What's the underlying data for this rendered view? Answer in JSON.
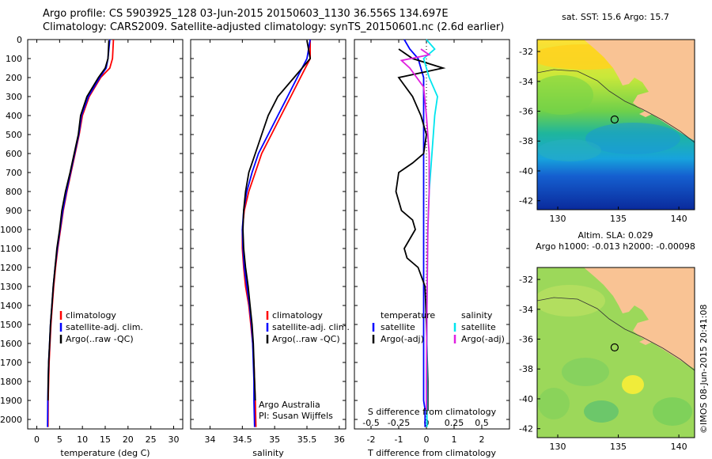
{
  "header": {
    "line1": "Argo profile: CS 5903925_128 03-Jun-2015 20150603_1130 36.556S 134.697E",
    "line2": "Climatology: CARS2009. Satellite-adjusted climatology: synTS_20150601.nc (2.6d earlier)"
  },
  "copyright": "©IMOS 08-Jun-2015 20:41:08",
  "colors": {
    "climatology": "#ff0000",
    "satellite": "#0000ff",
    "argo": "#000000",
    "sal_satellite": "#00e5ee",
    "sal_argo": "#e020e0",
    "land": "#f9c394"
  },
  "chart_data": [
    {
      "type": "line",
      "id": "temperature",
      "xlabel": "temperature (deg C)",
      "ylabel": "",
      "xlim": [
        -2,
        32
      ],
      "ylim": [
        2050,
        0
      ],
      "xticks": [
        0,
        5,
        10,
        15,
        20,
        25,
        30
      ],
      "yticks": [
        0,
        100,
        200,
        300,
        400,
        500,
        600,
        700,
        800,
        900,
        1000,
        1100,
        1200,
        1300,
        1400,
        1500,
        1600,
        1700,
        1800,
        1900,
        2000
      ],
      "legend": [
        "climatology",
        "satellite-adj. clim.",
        "Argo(..raw -QC)"
      ],
      "series": [
        {
          "name": "climatology",
          "x": [
            16.8,
            16.6,
            16.0,
            14.0,
            11.5,
            10.0,
            9.3,
            8.4,
            7.5,
            6.6,
            5.8,
            5.2,
            4.6,
            4.1,
            3.7,
            3.4,
            3.1,
            2.9,
            2.7,
            2.6,
            2.5,
            2.45
          ],
          "depth": [
            0,
            100,
            150,
            200,
            300,
            400,
            500,
            600,
            700,
            800,
            900,
            1000,
            1100,
            1200,
            1300,
            1400,
            1500,
            1600,
            1700,
            1800,
            1900,
            2040
          ]
        },
        {
          "name": "satellite-adj. clim.",
          "x": [
            16.0,
            15.6,
            15.2,
            13.8,
            11.3,
            9.8,
            9.2,
            8.3,
            7.4,
            6.5,
            5.7,
            5.1,
            4.5,
            4.0,
            3.6,
            3.3,
            3.0,
            2.8,
            2.6,
            2.5,
            2.4,
            2.35
          ],
          "depth": [
            0,
            100,
            150,
            200,
            300,
            400,
            500,
            600,
            700,
            800,
            900,
            1000,
            1100,
            1200,
            1300,
            1400,
            1500,
            1600,
            1700,
            1800,
            1900,
            2040
          ]
        },
        {
          "name": "Argo(..raw -QC)",
          "x": [
            15.8,
            15.6,
            15.0,
            13.5,
            11.0,
            9.6,
            9.1,
            8.2,
            7.3,
            6.3,
            5.5,
            5.0,
            4.4,
            4.0,
            3.6,
            3.3,
            3.0,
            2.8,
            2.6,
            2.5,
            2.45
          ],
          "depth": [
            5,
            100,
            150,
            200,
            300,
            400,
            500,
            600,
            700,
            800,
            900,
            1000,
            1100,
            1200,
            1300,
            1400,
            1500,
            1600,
            1700,
            1800,
            1900
          ]
        }
      ]
    },
    {
      "type": "line",
      "id": "salinity",
      "xlabel": "salinity",
      "ylabel": "",
      "xlim": [
        33.7,
        36.1
      ],
      "ylim": [
        2050,
        0
      ],
      "xticks": [
        34,
        34.5,
        35,
        35.5,
        36
      ],
      "xtick_labels": [
        "34",
        "34.5",
        "35",
        "35.5",
        "36"
      ],
      "legend": [
        "climatology",
        "satellite-adj. clim.",
        "Argo(..raw -QC)"
      ],
      "note_lines": [
        "Argo Australia",
        "PI: Susan Wijffels"
      ],
      "series": [
        {
          "name": "climatology",
          "x": [
            35.55,
            35.55,
            35.4,
            35.25,
            35.1,
            34.95,
            34.8,
            34.7,
            34.6,
            34.53,
            34.5,
            34.5,
            34.52,
            34.55,
            34.6,
            34.63,
            34.66,
            34.68,
            34.69,
            34.7,
            34.71
          ],
          "depth": [
            0,
            100,
            200,
            300,
            400,
            500,
            600,
            700,
            800,
            900,
            1000,
            1100,
            1200,
            1300,
            1400,
            1500,
            1600,
            1700,
            1800,
            1900,
            2040
          ]
        },
        {
          "name": "satellite-adj. clim.",
          "x": [
            35.55,
            35.5,
            35.35,
            35.2,
            35.05,
            34.9,
            34.75,
            34.65,
            34.57,
            34.52,
            34.5,
            34.51,
            34.53,
            34.57,
            34.61,
            34.64,
            34.66,
            34.67,
            34.68,
            34.68,
            34.69
          ],
          "depth": [
            0,
            100,
            200,
            300,
            400,
            500,
            600,
            700,
            800,
            900,
            1000,
            1100,
            1200,
            1300,
            1400,
            1500,
            1600,
            1700,
            1800,
            1900,
            2040
          ]
        },
        {
          "name": "Argo(..raw -QC)",
          "x": [
            35.5,
            35.55,
            35.3,
            35.05,
            34.9,
            34.8,
            34.7,
            34.6,
            34.55,
            34.52,
            34.51,
            34.52,
            34.55,
            34.59,
            34.62,
            34.65,
            34.67,
            34.68,
            34.69,
            34.7
          ],
          "depth": [
            5,
            100,
            200,
            300,
            400,
            500,
            600,
            700,
            800,
            900,
            1000,
            1100,
            1200,
            1300,
            1400,
            1500,
            1600,
            1700,
            1800,
            1900
          ]
        }
      ]
    },
    {
      "type": "line",
      "id": "differences",
      "xlabel": "T difference from climatology",
      "xlabel_top": "S difference from climatology",
      "xlim": [
        -2.6,
        3.0
      ],
      "ylim": [
        2050,
        0
      ],
      "xticks": [
        -2,
        -1,
        0,
        1,
        2
      ],
      "top_ticks": [
        "-0.5",
        "-0.25",
        "0",
        "0.25",
        "0.5"
      ],
      "legend_temperature": [
        "temperature",
        "satellite",
        "Argo(-adj)"
      ],
      "legend_salinity": [
        "salinity",
        "satellite",
        "Argo(-adj)"
      ],
      "series": [
        {
          "name": "satellite",
          "x": [
            -0.8,
            -0.6,
            -0.3,
            -0.1,
            -0.1,
            -0.1,
            -0.1,
            -0.1,
            -0.1,
            -0.1,
            -0.1,
            -0.1,
            -0.1,
            -0.05,
            -0.05,
            -0.05
          ],
          "depth": [
            0,
            50,
            100,
            200,
            400,
            600,
            800,
            1000,
            1200,
            1400,
            1600,
            1800,
            1900,
            1950,
            2000,
            2040
          ]
        },
        {
          "name": "Argo(-adj)",
          "x": [
            -1.0,
            -0.5,
            0.6,
            -1.0,
            -0.5,
            -0.2,
            0.0,
            -0.1,
            -0.5,
            -1.0,
            -1.1,
            -0.9,
            -0.5,
            -0.4,
            -0.6,
            -0.8,
            -0.7,
            -0.3,
            -0.05,
            0.0,
            0.05,
            0.05
          ],
          "depth": [
            50,
            100,
            150,
            200,
            300,
            400,
            500,
            600,
            650,
            700,
            800,
            900,
            950,
            1000,
            1050,
            1100,
            1150,
            1200,
            1300,
            1500,
            1800,
            1950
          ]
        },
        {
          "name": "satellite",
          "x": [
            0.0,
            0.3,
            -0.1,
            0.1,
            0.4,
            0.3,
            0.2,
            0.1,
            0.05,
            0.02,
            0.02
          ],
          "depth": [
            0,
            50,
            100,
            200,
            300,
            400,
            600,
            800,
            1000,
            1400,
            2040
          ]
        },
        {
          "name": "Argo(-adj)",
          "x": [
            -0.2,
            0.1,
            -0.9,
            -0.6,
            -0.1,
            0.0,
            0.1,
            0.1,
            0.05,
            0.02,
            0.0,
            0.0
          ],
          "depth": [
            50,
            80,
            110,
            150,
            250,
            400,
            600,
            800,
            1000,
            1400,
            1800,
            1950
          ]
        }
      ]
    },
    {
      "type": "heatmap",
      "id": "sst-map",
      "title": "sat. SST: 15.6 Argo: 15.7",
      "xlim": [
        128.3,
        141.3
      ],
      "ylim": [
        -42.6,
        -31.2
      ],
      "xticks": [
        130,
        135,
        140
      ],
      "yticks": [
        -32,
        -34,
        -36,
        -38,
        -40,
        -42
      ],
      "argo_position": [
        134.697,
        -36.556
      ]
    },
    {
      "type": "heatmap",
      "id": "sla-map",
      "title_line1": "Altim. SLA: 0.029",
      "title_line2": "Argo h1000: -0.013 h2000: -0.00098",
      "xlim": [
        128.3,
        141.3
      ],
      "ylim": [
        -42.6,
        -31.2
      ],
      "xticks": [
        130,
        135,
        140
      ],
      "yticks": [
        -32,
        -34,
        -36,
        -38,
        -40,
        -42
      ],
      "argo_position": [
        134.697,
        -36.556
      ]
    }
  ]
}
